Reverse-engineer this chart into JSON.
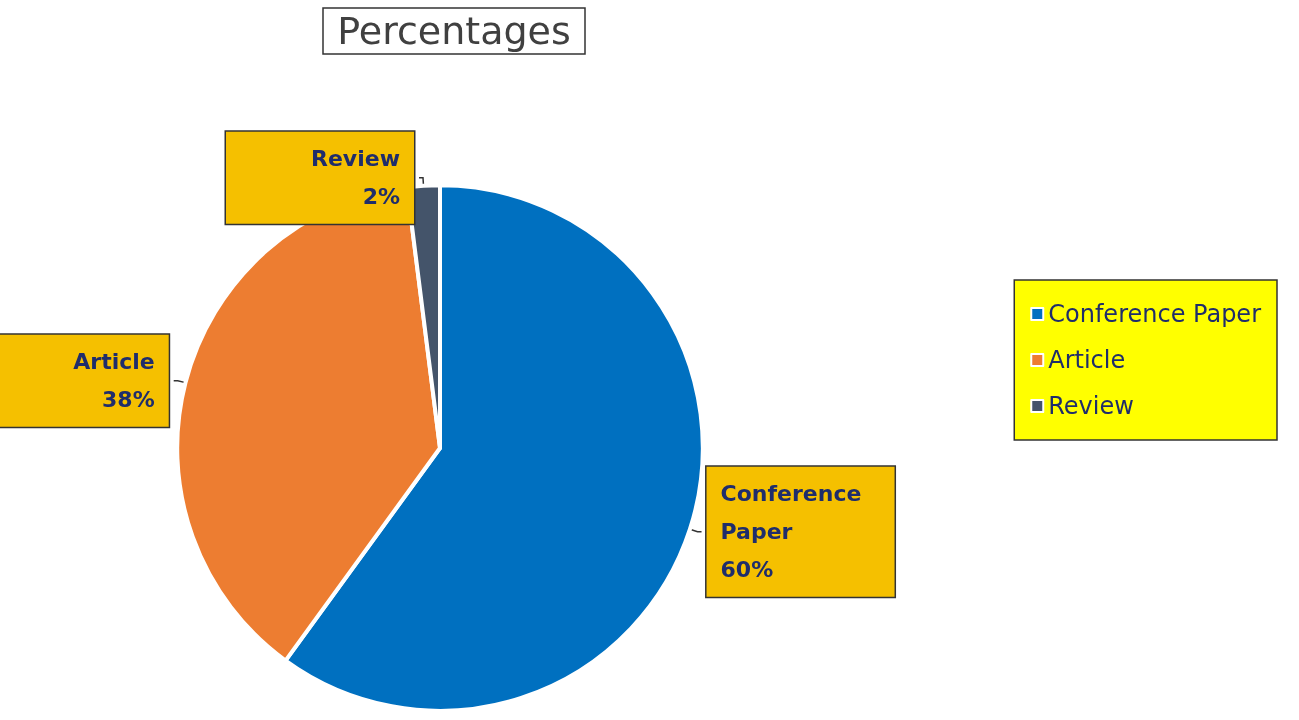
{
  "chart_data": {
    "type": "pie",
    "title": "Percentages",
    "categories": [
      "Conference Paper",
      "Article",
      "Review"
    ],
    "values": [
      60,
      38,
      2
    ],
    "colors": [
      "#0070c0",
      "#ed7d31",
      "#44546a"
    ],
    "value_labels": [
      "60%",
      "38%",
      "2%"
    ],
    "legend": "right"
  }
}
